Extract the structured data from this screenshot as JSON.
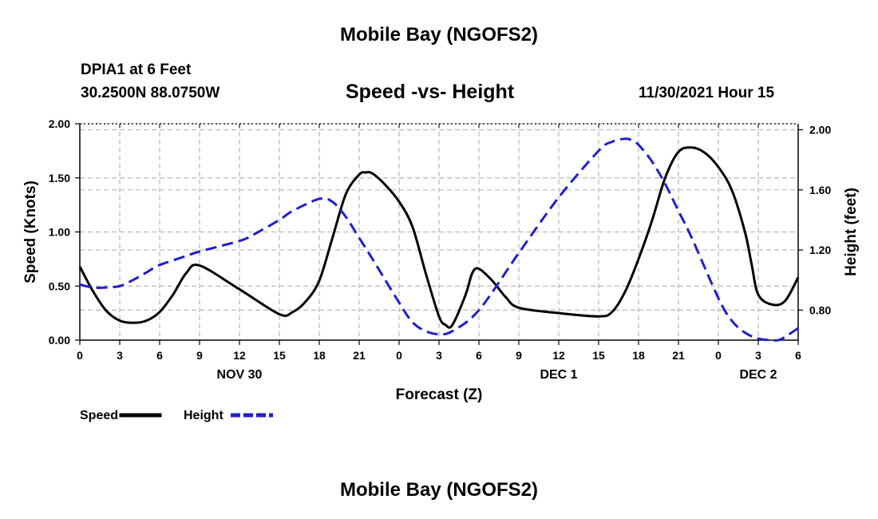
{
  "page": {
    "title": "Mobile Bay (NGOFS2)",
    "title_repeat": "Mobile Bay (NGOFS2)",
    "station": "DPIA1 at 6 Feet",
    "coordinates": "30.2500N  88.0750W",
    "subtitle": "Speed -vs- Height",
    "datetime": "11/30/2021 Hour 15"
  },
  "chart_data": {
    "type": "line",
    "title": "Speed -vs- Height",
    "xlabel": "Forecast (Z)",
    "ylabel": "Speed (Knots)",
    "y2label": "Height (feet)",
    "x_unit": "forecast hour",
    "xlim": [
      0,
      54
    ],
    "ylim": [
      0,
      2.0
    ],
    "y2lim": [
      0.6,
      2.04
    ],
    "grid": true,
    "x_ticks": [
      0,
      3,
      6,
      9,
      12,
      15,
      18,
      21,
      24,
      27,
      30,
      33,
      36,
      39,
      42,
      45,
      48,
      51,
      54
    ],
    "x_tick_labels": [
      "0",
      "3",
      "6",
      "9",
      "12",
      "15",
      "18",
      "21",
      "0",
      "3",
      "6",
      "9",
      "12",
      "15",
      "18",
      "21",
      "0",
      "3",
      "6"
    ],
    "date_labels": [
      {
        "label": "NOV 30",
        "hour": 12
      },
      {
        "label": "DEC 1",
        "hour": 36
      },
      {
        "label": "DEC 2",
        "hour": 51
      }
    ],
    "y_ticks": [
      0.0,
      0.5,
      1.0,
      1.5,
      2.0
    ],
    "y_tick_labels": [
      "0.00",
      "0.50",
      "1.00",
      "1.50",
      "2.00"
    ],
    "y2_ticks": [
      0.8,
      1.2,
      1.6,
      2.0
    ],
    "y2_tick_labels": [
      "0.80",
      "1.20",
      "1.60",
      "2.00"
    ],
    "legend": {
      "position": "bottom-left",
      "entries": [
        "Speed",
        "Height"
      ]
    },
    "series": [
      {
        "name": "Speed",
        "axis": "left",
        "color": "#000000",
        "dash": "solid",
        "x": [
          0,
          1,
          2,
          3,
          4,
          5,
          6,
          7,
          8,
          9,
          12,
          15,
          16,
          17,
          18,
          19,
          20,
          21,
          21.5,
          22,
          23,
          24,
          25,
          26,
          27,
          27.5,
          28,
          29,
          29.5,
          30,
          31,
          32,
          33,
          36,
          39,
          40,
          41,
          42,
          43,
          44,
          45,
          46,
          47,
          48,
          49,
          50,
          50.5,
          51,
          52,
          53,
          54
        ],
        "y": [
          0.68,
          0.45,
          0.27,
          0.18,
          0.16,
          0.18,
          0.26,
          0.42,
          0.62,
          0.69,
          0.47,
          0.24,
          0.26,
          0.36,
          0.55,
          0.95,
          1.35,
          1.53,
          1.55,
          1.54,
          1.43,
          1.28,
          1.05,
          0.62,
          0.22,
          0.14,
          0.14,
          0.42,
          0.62,
          0.66,
          0.55,
          0.4,
          0.3,
          0.25,
          0.22,
          0.26,
          0.45,
          0.75,
          1.1,
          1.5,
          1.74,
          1.78,
          1.73,
          1.6,
          1.39,
          1.0,
          0.7,
          0.42,
          0.33,
          0.36,
          0.58
        ]
      },
      {
        "name": "Height",
        "axis": "right",
        "color": "#1f1fcf",
        "dash": "dashed",
        "x": [
          0,
          1,
          2,
          3,
          4,
          5,
          6,
          8,
          9,
          12,
          13,
          15,
          16,
          18,
          19,
          20,
          21,
          22,
          24,
          25,
          26,
          27,
          28,
          30,
          33,
          36,
          39,
          40,
          41,
          41.5,
          42,
          43,
          44,
          45,
          46,
          48,
          49,
          50,
          51,
          52,
          52.5,
          53,
          54
        ],
        "y": [
          0.97,
          0.95,
          0.95,
          0.96,
          1.0,
          1.05,
          1.1,
          1.16,
          1.19,
          1.26,
          1.3,
          1.4,
          1.46,
          1.54,
          1.52,
          1.42,
          1.28,
          1.14,
          0.85,
          0.72,
          0.66,
          0.64,
          0.66,
          0.8,
          1.18,
          1.55,
          1.86,
          1.92,
          1.94,
          1.93,
          1.9,
          1.79,
          1.64,
          1.46,
          1.28,
          0.88,
          0.73,
          0.65,
          0.61,
          0.6,
          0.6,
          0.62,
          0.68
        ]
      }
    ]
  }
}
